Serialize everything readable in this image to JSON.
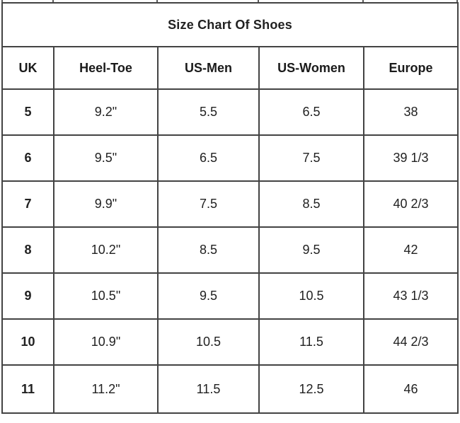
{
  "chart_data": {
    "type": "table",
    "title": "Size Chart Of Shoes",
    "columns": [
      "UK",
      "Heel-Toe",
      "US-Men",
      "US-Women",
      "Europe"
    ],
    "rows": [
      [
        "5",
        "9.2\"",
        "5.5",
        "6.5",
        "38"
      ],
      [
        "6",
        "9.5\"",
        "6.5",
        "7.5",
        "39 1/3"
      ],
      [
        "7",
        "9.9\"",
        "7.5",
        "8.5",
        "40 2/3"
      ],
      [
        "8",
        "10.2\"",
        "8.5",
        "9.5",
        "42"
      ],
      [
        "9",
        "10.5\"",
        "9.5",
        "10.5",
        "43 1/3"
      ],
      [
        "10",
        "10.9\"",
        "10.5",
        "11.5",
        "44 2/3"
      ],
      [
        "11",
        "11.2\"",
        "11.5",
        "12.5",
        "46"
      ]
    ],
    "legend": "none",
    "grid": "on"
  },
  "colors": {
    "background": "#ffffff",
    "border": "#434343",
    "top_border": "#a8a8a8",
    "text": "#212121",
    "title_text": "#141414"
  }
}
